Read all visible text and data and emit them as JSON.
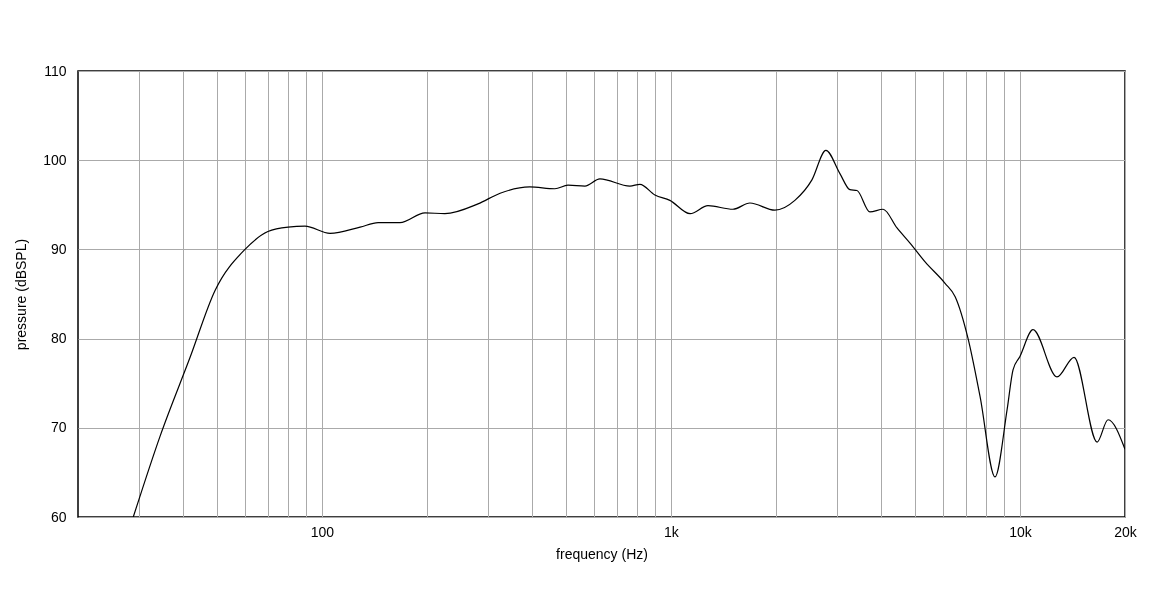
{
  "chart_data": {
    "type": "line",
    "xlabel": "frequency (Hz)",
    "ylabel": "pressure (dBSPL)",
    "log": "x",
    "grid": true,
    "xlim": [
      20,
      20000
    ],
    "ylim": [
      60,
      110
    ],
    "xticks": [
      {
        "value": 30,
        "label": null
      },
      {
        "value": 40,
        "label": null
      },
      {
        "value": 50,
        "label": null
      },
      {
        "value": 60,
        "label": null
      },
      {
        "value": 70,
        "label": null
      },
      {
        "value": 80,
        "label": null
      },
      {
        "value": 90,
        "label": null
      },
      100,
      {
        "value": 200,
        "label": null
      },
      {
        "value": 300,
        "label": null
      },
      {
        "value": 400,
        "label": null
      },
      {
        "value": 500,
        "label": null
      },
      {
        "value": 600,
        "label": null
      },
      {
        "value": 700,
        "label": null
      },
      {
        "value": 800,
        "label": null
      },
      {
        "value": 900,
        "label": null
      },
      {
        "value": 1000,
        "label": "1k"
      },
      {
        "value": 2000,
        "label": null
      },
      {
        "value": 3000,
        "label": null
      },
      {
        "value": 4000,
        "label": null
      },
      {
        "value": 5000,
        "label": null
      },
      {
        "value": 6000,
        "label": null
      },
      {
        "value": 7000,
        "label": null
      },
      {
        "value": 8000,
        "label": null
      },
      {
        "value": 9000,
        "label": null
      },
      {
        "value": 10000,
        "label": "10k"
      },
      {
        "value": 20000,
        "label": "20k"
      }
    ],
    "yticks": [
      60,
      70,
      80,
      90,
      100,
      110
    ],
    "series": [
      {
        "color": "#000000",
        "x": [
          28.8,
          34.4,
          41.9,
          49.4,
          60.2,
          70,
          80,
          89.4,
          105.5,
          128.6,
          144.9,
          167.3,
          197.4,
          225,
          280,
          324,
          394,
          465,
          507,
          567,
          626,
          763,
          815,
          900,
          993,
          1135,
          1277,
          1506,
          1684,
          1986,
          2265,
          2535,
          2780,
          3049,
          3256,
          3412,
          3716,
          4052,
          4444,
          4842,
          5349,
          6101,
          6522,
          7102,
          7688,
          8483,
          9185,
          9554,
          10000,
          10900,
          12770,
          14290,
          16640,
          17880,
          20000
        ],
        "values": [
          60,
          69.1,
          77.9,
          85.4,
          90,
          92,
          92.5,
          92.6,
          91.8,
          92.5,
          93,
          93,
          94.1,
          94,
          95.1,
          96.3,
          97,
          96.8,
          97.2,
          97.1,
          97.9,
          97.1,
          97.3,
          96.1,
          95.5,
          94,
          94.9,
          94.5,
          95.2,
          94.4,
          95.5,
          97.8,
          101.1,
          98.5,
          96.7,
          96.6,
          94.2,
          94.5,
          92.4,
          90.7,
          88.6,
          86.2,
          84.7,
          80,
          73.5,
          64.5,
          72,
          76.5,
          78,
          81,
          75.7,
          77.9,
          68.4,
          70.9,
          67.6
        ]
      }
    ]
  }
}
